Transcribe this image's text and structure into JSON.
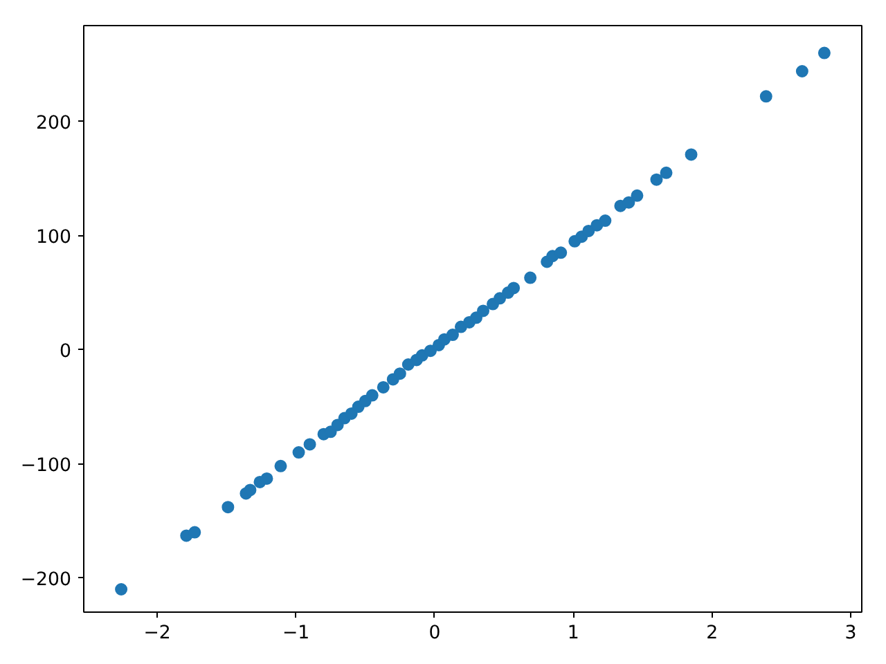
{
  "chart_data": {
    "type": "scatter",
    "marker": "circle",
    "xlim": [
      -2.53,
      3.08
    ],
    "ylim": [
      -230,
      284
    ],
    "xticks": [
      {
        "value": -2,
        "label": "−2"
      },
      {
        "value": -1,
        "label": "−1"
      },
      0,
      1,
      2,
      3
    ],
    "yticks": [
      {
        "value": -200,
        "label": "−200"
      },
      {
        "value": -100,
        "label": "−100"
      },
      0,
      100,
      200
    ],
    "series": [
      {
        "color": "#1f77b4",
        "x": [
          -2.26,
          -1.79,
          -1.73,
          -1.49,
          -1.36,
          -1.33,
          -1.26,
          -1.21,
          -1.11,
          -0.98,
          -0.9,
          -0.8,
          -0.75,
          -0.7,
          -0.65,
          -0.6,
          -0.55,
          -0.5,
          -0.45,
          -0.37,
          -0.3,
          -0.25,
          -0.19,
          -0.13,
          -0.09,
          -0.03,
          0.03,
          0.07,
          0.13,
          0.19,
          0.25,
          0.3,
          0.35,
          0.42,
          0.47,
          0.53,
          0.57,
          0.69,
          0.81,
          0.85,
          0.91,
          1.01,
          1.06,
          1.11,
          1.17,
          1.23,
          1.34,
          1.4,
          1.46,
          1.6,
          1.67,
          1.85,
          2.39,
          2.65,
          2.81
        ],
        "values": [
          -210,
          -163,
          -160,
          -138,
          -126,
          -123,
          -116,
          -113,
          -102,
          -90,
          -83,
          -74,
          -72,
          -66,
          -60,
          -56,
          -50,
          -45,
          -40,
          -33,
          -26,
          -21,
          -13,
          -9,
          -5,
          -1,
          4,
          9,
          13,
          20,
          24,
          28,
          34,
          40,
          45,
          50,
          54,
          63,
          77,
          82,
          85,
          95,
          99,
          104,
          109,
          113,
          126,
          129,
          135,
          149,
          155,
          171,
          222,
          244,
          260
        ]
      }
    ]
  }
}
